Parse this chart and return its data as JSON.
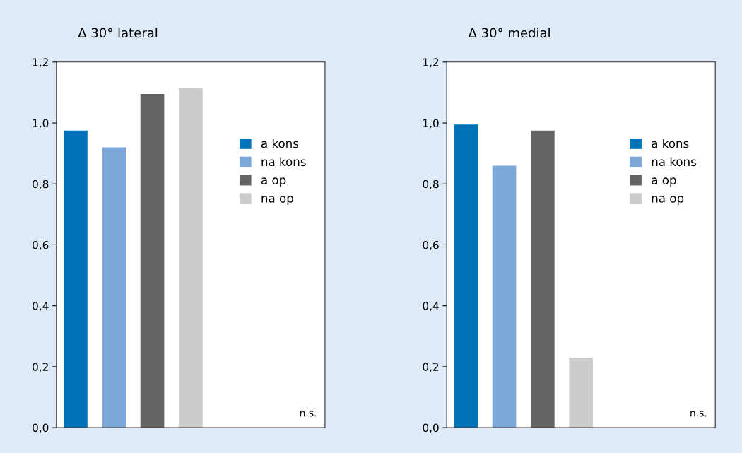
{
  "chart_data": [
    {
      "type": "bar",
      "title": "Δ 30° lateral",
      "categories": [
        null,
        null,
        null,
        null,
        null,
        null,
        null
      ],
      "stacked": true,
      "series": [
        {
          "name": "a kons",
          "color": "#0072b8",
          "values": [
            0.975,
            null,
            null,
            null,
            null,
            null,
            null
          ]
        },
        {
          "name": "na kons",
          "color": "#7ba7d9",
          "values": [
            null,
            0.92,
            null,
            null,
            null,
            null,
            null
          ]
        },
        {
          "name": "a op",
          "color": "#646464",
          "values": [
            null,
            null,
            1.095,
            null,
            null,
            null,
            null
          ]
        },
        {
          "name": "na op",
          "color": "#cccccc",
          "values": [
            null,
            null,
            null,
            1.115,
            null,
            null,
            null
          ]
        }
      ],
      "ylim": [
        0,
        1.2
      ],
      "yticks": [
        {
          "value": 0,
          "label": "0,0"
        },
        {
          "value": 0.2,
          "label": "0,2"
        },
        {
          "value": 0.4,
          "label": "0,4"
        },
        {
          "value": 0.6,
          "label": "0,6"
        },
        {
          "value": 0.8,
          "label": "0,8"
        },
        {
          "value": 1.0,
          "label": "1,0"
        },
        {
          "value": 1.2,
          "label": "1,2"
        }
      ],
      "tick_labels": "y",
      "grid": false,
      "legend": "top right",
      "annotations": [
        "n.s."
      ]
    },
    {
      "type": "bar",
      "title": "Δ 30° medial",
      "categories": [
        null,
        null,
        null,
        null,
        null,
        null,
        null
      ],
      "stacked": true,
      "series": [
        {
          "name": "a kons",
          "color": "#0072b8",
          "values": [
            0.995,
            null,
            null,
            null,
            null,
            null,
            null
          ]
        },
        {
          "name": "na kons",
          "color": "#7ba7d9",
          "values": [
            null,
            0.86,
            null,
            null,
            null,
            null,
            null
          ]
        },
        {
          "name": "a op",
          "color": "#646464",
          "values": [
            null,
            null,
            0.975,
            null,
            null,
            null,
            null
          ]
        },
        {
          "name": "na op",
          "color": "#cccccc",
          "values": [
            null,
            null,
            null,
            0.23,
            null,
            null,
            null
          ]
        }
      ],
      "ylim": [
        0,
        1.2
      ],
      "yticks": [
        {
          "value": 0,
          "label": "0,0"
        },
        {
          "value": 0.2,
          "label": "0,2"
        },
        {
          "value": 0.4,
          "label": "0,4"
        },
        {
          "value": 0.6,
          "label": "0,6"
        },
        {
          "value": 0.8,
          "label": "0,8"
        },
        {
          "value": 1.0,
          "label": "1,0"
        },
        {
          "value": 1.2,
          "label": "1,2"
        }
      ],
      "tick_labels": "y",
      "grid": false,
      "legend": "top right",
      "annotations": [
        "n.s."
      ]
    }
  ]
}
